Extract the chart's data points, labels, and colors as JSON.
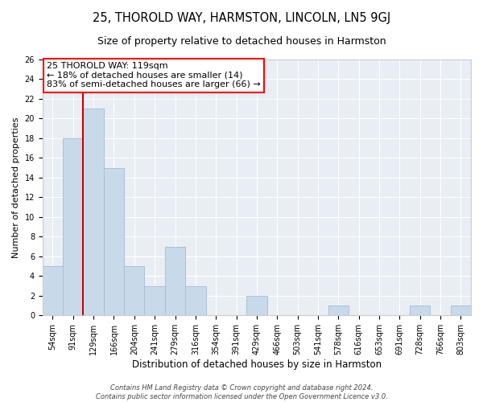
{
  "title1": "25, THOROLD WAY, HARMSTON, LINCOLN, LN5 9GJ",
  "title2": "Size of property relative to detached houses in Harmston",
  "xlabel": "Distribution of detached houses by size in Harmston",
  "ylabel": "Number of detached properties",
  "footer1": "Contains HM Land Registry data © Crown copyright and database right 2024.",
  "footer2": "Contains public sector information licensed under the Open Government Licence v3.0.",
  "bin_labels": [
    "54sqm",
    "91sqm",
    "129sqm",
    "166sqm",
    "204sqm",
    "241sqm",
    "279sqm",
    "316sqm",
    "354sqm",
    "391sqm",
    "429sqm",
    "466sqm",
    "503sqm",
    "541sqm",
    "578sqm",
    "616sqm",
    "653sqm",
    "691sqm",
    "728sqm",
    "766sqm",
    "803sqm"
  ],
  "bar_heights": [
    5,
    18,
    21,
    15,
    5,
    3,
    7,
    3,
    0,
    0,
    2,
    0,
    0,
    0,
    1,
    0,
    0,
    0,
    1,
    0,
    1
  ],
  "bar_color": "#c8daea",
  "bar_edge_color": "#a8c0d6",
  "property_line_color": "#cc0000",
  "annotation_title": "25 THOROLD WAY: 119sqm",
  "annotation_line1": "← 18% of detached houses are smaller (14)",
  "annotation_line2": "83% of semi-detached houses are larger (66) →",
  "ylim": [
    0,
    26
  ],
  "yticks": [
    0,
    2,
    4,
    6,
    8,
    10,
    12,
    14,
    16,
    18,
    20,
    22,
    24,
    26
  ],
  "bg_color": "#e8eef4",
  "grid_color": "#ffffff",
  "title1_fontsize": 10.5,
  "title2_fontsize": 9,
  "footer_fontsize": 6,
  "ylabel_fontsize": 8,
  "xlabel_fontsize": 8.5,
  "tick_fontsize": 7,
  "annot_fontsize": 8
}
